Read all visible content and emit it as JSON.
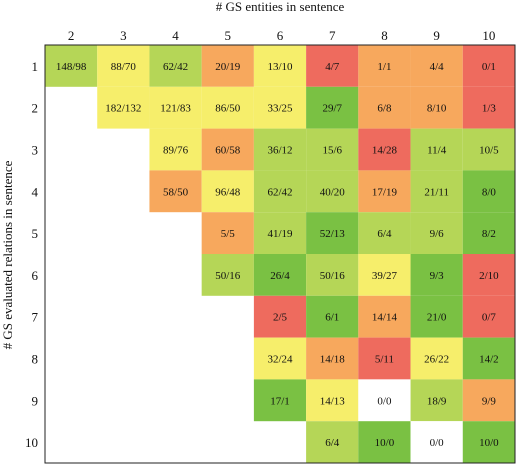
{
  "chart_data": {
    "type": "heatmap",
    "title": "",
    "xlabel": "# GS entities in sentence",
    "ylabel": "# GS evaluated relations in sentence",
    "x_categories": [
      "2",
      "3",
      "4",
      "5",
      "6",
      "7",
      "8",
      "9",
      "10"
    ],
    "y_categories": [
      "1",
      "2",
      "3",
      "4",
      "5",
      "6",
      "7",
      "8",
      "9",
      "10"
    ],
    "palette": {
      "green": "#7ac143",
      "light_green": "#b5d657",
      "yellow": "#f6ee6b",
      "orange": "#f7a85d",
      "red": "#ee6b5e",
      "white": "#ffffff"
    },
    "cells": [
      {
        "x": "2",
        "y": "1",
        "num": 148,
        "den": 98,
        "label": "148/98",
        "color": "#b5d657"
      },
      {
        "x": "3",
        "y": "1",
        "num": 88,
        "den": 70,
        "label": "88/70",
        "color": "#f6ee6b"
      },
      {
        "x": "4",
        "y": "1",
        "num": 62,
        "den": 42,
        "label": "62/42",
        "color": "#b5d657"
      },
      {
        "x": "5",
        "y": "1",
        "num": 20,
        "den": 19,
        "label": "20/19",
        "color": "#f7a85d"
      },
      {
        "x": "6",
        "y": "1",
        "num": 13,
        "den": 10,
        "label": "13/10",
        "color": "#f6ee6b"
      },
      {
        "x": "7",
        "y": "1",
        "num": 4,
        "den": 7,
        "label": "4/7",
        "color": "#ee6b5e"
      },
      {
        "x": "8",
        "y": "1",
        "num": 1,
        "den": 1,
        "label": "1/1",
        "color": "#f7a85d"
      },
      {
        "x": "9",
        "y": "1",
        "num": 4,
        "den": 4,
        "label": "4/4",
        "color": "#f7a85d"
      },
      {
        "x": "10",
        "y": "1",
        "num": 0,
        "den": 1,
        "label": "0/1",
        "color": "#ee6b5e"
      },
      {
        "x": "3",
        "y": "2",
        "num": 182,
        "den": 132,
        "label": "182/132",
        "color": "#f6ee6b"
      },
      {
        "x": "4",
        "y": "2",
        "num": 121,
        "den": 83,
        "label": "121/83",
        "color": "#f6ee6b"
      },
      {
        "x": "5",
        "y": "2",
        "num": 86,
        "den": 50,
        "label": "86/50",
        "color": "#f6ee6b"
      },
      {
        "x": "6",
        "y": "2",
        "num": 33,
        "den": 25,
        "label": "33/25",
        "color": "#f6ee6b"
      },
      {
        "x": "7",
        "y": "2",
        "num": 29,
        "den": 7,
        "label": "29/7",
        "color": "#7ac143"
      },
      {
        "x": "8",
        "y": "2",
        "num": 6,
        "den": 8,
        "label": "6/8",
        "color": "#f7a85d"
      },
      {
        "x": "9",
        "y": "2",
        "num": 8,
        "den": 10,
        "label": "8/10",
        "color": "#f7a85d"
      },
      {
        "x": "10",
        "y": "2",
        "num": 1,
        "den": 3,
        "label": "1/3",
        "color": "#ee6b5e"
      },
      {
        "x": "4",
        "y": "3",
        "num": 89,
        "den": 76,
        "label": "89/76",
        "color": "#f6ee6b"
      },
      {
        "x": "5",
        "y": "3",
        "num": 60,
        "den": 58,
        "label": "60/58",
        "color": "#f7a85d"
      },
      {
        "x": "6",
        "y": "3",
        "num": 36,
        "den": 12,
        "label": "36/12",
        "color": "#b5d657"
      },
      {
        "x": "7",
        "y": "3",
        "num": 15,
        "den": 6,
        "label": "15/6",
        "color": "#b5d657"
      },
      {
        "x": "8",
        "y": "3",
        "num": 14,
        "den": 28,
        "label": "14/28",
        "color": "#ee6b5e"
      },
      {
        "x": "9",
        "y": "3",
        "num": 11,
        "den": 4,
        "label": "11/4",
        "color": "#b5d657"
      },
      {
        "x": "10",
        "y": "3",
        "num": 10,
        "den": 5,
        "label": "10/5",
        "color": "#b5d657"
      },
      {
        "x": "4",
        "y": "4",
        "num": 58,
        "den": 50,
        "label": "58/50",
        "color": "#f7a85d"
      },
      {
        "x": "5",
        "y": "4",
        "num": 96,
        "den": 48,
        "label": "96/48",
        "color": "#f6ee6b"
      },
      {
        "x": "6",
        "y": "4",
        "num": 62,
        "den": 42,
        "label": "62/42",
        "color": "#b5d657"
      },
      {
        "x": "7",
        "y": "4",
        "num": 40,
        "den": 20,
        "label": "40/20",
        "color": "#b5d657"
      },
      {
        "x": "8",
        "y": "4",
        "num": 17,
        "den": 19,
        "label": "17/19",
        "color": "#f7a85d"
      },
      {
        "x": "9",
        "y": "4",
        "num": 21,
        "den": 11,
        "label": "21/11",
        "color": "#b5d657"
      },
      {
        "x": "10",
        "y": "4",
        "num": 8,
        "den": 0,
        "label": "8/0",
        "color": "#7ac143"
      },
      {
        "x": "5",
        "y": "5",
        "num": 5,
        "den": 5,
        "label": "5/5",
        "color": "#f7a85d"
      },
      {
        "x": "6",
        "y": "5",
        "num": 41,
        "den": 19,
        "label": "41/19",
        "color": "#b5d657"
      },
      {
        "x": "7",
        "y": "5",
        "num": 52,
        "den": 13,
        "label": "52/13",
        "color": "#7ac143"
      },
      {
        "x": "8",
        "y": "5",
        "num": 6,
        "den": 4,
        "label": "6/4",
        "color": "#b5d657"
      },
      {
        "x": "9",
        "y": "5",
        "num": 9,
        "den": 6,
        "label": "9/6",
        "color": "#b5d657"
      },
      {
        "x": "10",
        "y": "5",
        "num": 8,
        "den": 2,
        "label": "8/2",
        "color": "#7ac143"
      },
      {
        "x": "5",
        "y": "6",
        "num": 50,
        "den": 16,
        "label": "50/16",
        "color": "#b5d657"
      },
      {
        "x": "6",
        "y": "6",
        "num": 26,
        "den": 4,
        "label": "26/4",
        "color": "#7ac143"
      },
      {
        "x": "7",
        "y": "6",
        "num": 50,
        "den": 16,
        "label": "50/16",
        "color": "#b5d657"
      },
      {
        "x": "8",
        "y": "6",
        "num": 39,
        "den": 27,
        "label": "39/27",
        "color": "#f6ee6b"
      },
      {
        "x": "9",
        "y": "6",
        "num": 9,
        "den": 3,
        "label": "9/3",
        "color": "#7ac143"
      },
      {
        "x": "10",
        "y": "6",
        "num": 2,
        "den": 10,
        "label": "2/10",
        "color": "#ee6b5e"
      },
      {
        "x": "6",
        "y": "7",
        "num": 2,
        "den": 5,
        "label": "2/5",
        "color": "#ee6b5e"
      },
      {
        "x": "7",
        "y": "7",
        "num": 6,
        "den": 1,
        "label": "6/1",
        "color": "#7ac143"
      },
      {
        "x": "8",
        "y": "7",
        "num": 14,
        "den": 14,
        "label": "14/14",
        "color": "#f7a85d"
      },
      {
        "x": "9",
        "y": "7",
        "num": 21,
        "den": 0,
        "label": "21/0",
        "color": "#7ac143"
      },
      {
        "x": "10",
        "y": "7",
        "num": 0,
        "den": 7,
        "label": "0/7",
        "color": "#ee6b5e"
      },
      {
        "x": "6",
        "y": "8",
        "num": 32,
        "den": 24,
        "label": "32/24",
        "color": "#f6ee6b"
      },
      {
        "x": "7",
        "y": "8",
        "num": 14,
        "den": 18,
        "label": "14/18",
        "color": "#f7a85d"
      },
      {
        "x": "8",
        "y": "8",
        "num": 5,
        "den": 11,
        "label": "5/11",
        "color": "#ee6b5e"
      },
      {
        "x": "9",
        "y": "8",
        "num": 26,
        "den": 22,
        "label": "26/22",
        "color": "#f6ee6b"
      },
      {
        "x": "10",
        "y": "8",
        "num": 14,
        "den": 2,
        "label": "14/2",
        "color": "#7ac143"
      },
      {
        "x": "6",
        "y": "9",
        "num": 17,
        "den": 1,
        "label": "17/1",
        "color": "#7ac143"
      },
      {
        "x": "7",
        "y": "9",
        "num": 14,
        "den": 13,
        "label": "14/13",
        "color": "#f6ee6b"
      },
      {
        "x": "8",
        "y": "9",
        "num": 0,
        "den": 0,
        "label": "0/0",
        "color": "#ffffff"
      },
      {
        "x": "9",
        "y": "9",
        "num": 18,
        "den": 9,
        "label": "18/9",
        "color": "#b5d657"
      },
      {
        "x": "10",
        "y": "9",
        "num": 9,
        "den": 9,
        "label": "9/9",
        "color": "#f7a85d"
      },
      {
        "x": "7",
        "y": "10",
        "num": 6,
        "den": 4,
        "label": "6/4",
        "color": "#b5d657"
      },
      {
        "x": "8",
        "y": "10",
        "num": 10,
        "den": 0,
        "label": "10/0",
        "color": "#7ac143"
      },
      {
        "x": "9",
        "y": "10",
        "num": 0,
        "den": 0,
        "label": "0/0",
        "color": "#ffffff"
      },
      {
        "x": "10",
        "y": "10",
        "num": 10,
        "den": 0,
        "label": "10/0",
        "color": "#7ac143"
      }
    ]
  }
}
